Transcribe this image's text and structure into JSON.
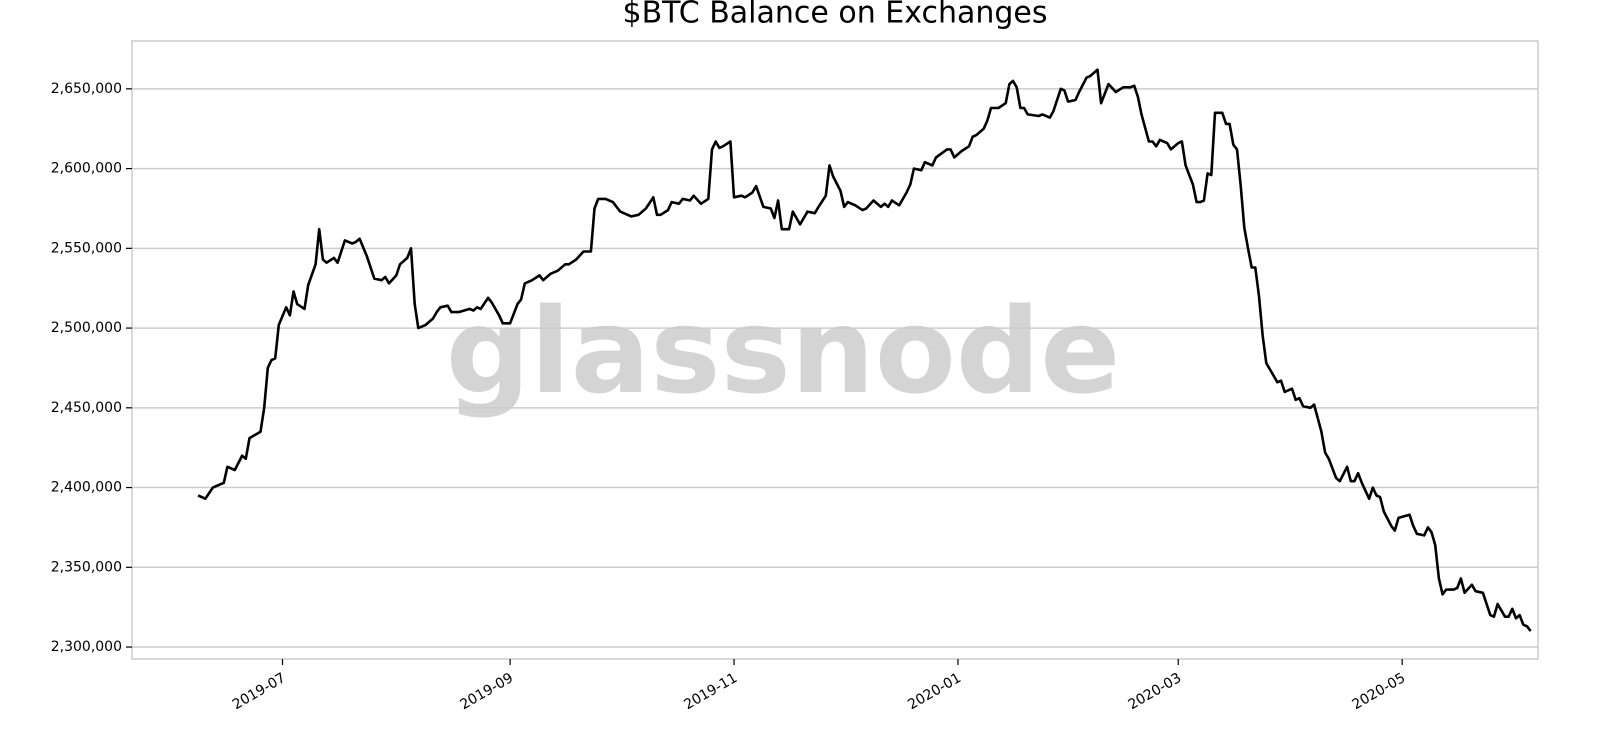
{
  "chart_data": {
    "type": "line",
    "title": "$BTC Balance on Exchanges",
    "watermark": "glassnode",
    "color": "#000000",
    "grid": true,
    "xlim": [
      "2019-05-21",
      "2020-06-07"
    ],
    "xticks": [
      "2019-07",
      "2019-09",
      "2019-11",
      "2020-01",
      "2020-03",
      "2020-05"
    ],
    "ylim": [
      2292500,
      2680000
    ],
    "yticks": [
      {
        "value": 2300000,
        "label": "2,300,000"
      },
      {
        "value": 2350000,
        "label": "2,350,000"
      },
      {
        "value": 2400000,
        "label": "2,400,000"
      },
      {
        "value": 2450000,
        "label": "2,450,000"
      },
      {
        "value": 2500000,
        "label": "2,500,000"
      },
      {
        "value": 2550000,
        "label": "2,550,000"
      },
      {
        "value": 2600000,
        "label": "2,600,000"
      },
      {
        "value": 2650000,
        "label": "2,650,000"
      }
    ],
    "x": [
      "2019-06-08",
      "2019-06-10",
      "2019-06-12",
      "2019-06-15",
      "2019-06-16",
      "2019-06-18",
      "2019-06-20",
      "2019-06-21",
      "2019-06-22",
      "2019-06-25",
      "2019-06-26",
      "2019-06-27",
      "2019-06-28",
      "2019-06-29",
      "2019-06-30",
      "2019-07-02",
      "2019-07-03",
      "2019-07-04",
      "2019-07-05",
      "2019-07-07",
      "2019-07-08",
      "2019-07-10",
      "2019-07-11",
      "2019-07-12",
      "2019-07-13",
      "2019-07-15",
      "2019-07-16",
      "2019-07-18",
      "2019-07-20",
      "2019-07-21",
      "2019-07-22",
      "2019-07-24",
      "2019-07-26",
      "2019-07-28",
      "2019-07-29",
      "2019-07-30",
      "2019-08-01",
      "2019-08-02",
      "2019-08-04",
      "2019-08-05",
      "2019-08-06",
      "2019-08-07",
      "2019-08-09",
      "2019-08-11",
      "2019-08-12",
      "2019-08-13",
      "2019-08-15",
      "2019-08-16",
      "2019-08-18",
      "2019-08-21",
      "2019-08-22",
      "2019-08-23",
      "2019-08-24",
      "2019-08-26",
      "2019-08-27",
      "2019-08-29",
      "2019-08-30",
      "2019-09-01",
      "2019-09-03",
      "2019-09-04",
      "2019-09-05",
      "2019-09-07",
      "2019-09-09",
      "2019-09-10",
      "2019-09-12",
      "2019-09-14",
      "2019-09-16",
      "2019-09-17",
      "2019-09-19",
      "2019-09-21",
      "2019-09-23",
      "2019-09-24",
      "2019-09-25",
      "2019-09-27",
      "2019-09-29",
      "2019-10-01",
      "2019-10-04",
      "2019-10-06",
      "2019-10-08",
      "2019-10-10",
      "2019-10-11",
      "2019-10-12",
      "2019-10-14",
      "2019-10-15",
      "2019-10-17",
      "2019-10-18",
      "2019-10-20",
      "2019-10-21",
      "2019-10-23",
      "2019-10-25",
      "2019-10-26",
      "2019-10-27",
      "2019-10-28",
      "2019-10-29",
      "2019-10-31",
      "2019-11-01",
      "2019-11-03",
      "2019-11-04",
      "2019-11-06",
      "2019-11-07",
      "2019-11-09",
      "2019-11-11",
      "2019-11-12",
      "2019-11-13",
      "2019-11-14",
      "2019-11-16",
      "2019-11-17",
      "2019-11-19",
      "2019-11-21",
      "2019-11-23",
      "2019-11-24",
      "2019-11-26",
      "2019-11-27",
      "2019-11-28",
      "2019-11-30",
      "2019-12-01",
      "2019-12-02",
      "2019-12-04",
      "2019-12-06",
      "2019-12-07",
      "2019-12-09",
      "2019-12-11",
      "2019-12-12",
      "2019-12-13",
      "2019-12-14",
      "2019-12-16",
      "2019-12-18",
      "2019-12-19",
      "2019-12-20",
      "2019-12-22",
      "2019-12-23",
      "2019-12-25",
      "2019-12-26",
      "2019-12-29",
      "2019-12-30",
      "2019-12-31",
      "2020-01-02",
      "2020-01-04",
      "2020-01-05",
      "2020-01-06",
      "2020-01-08",
      "2020-01-09",
      "2020-01-10",
      "2020-01-12",
      "2020-01-14",
      "2020-01-15",
      "2020-01-16",
      "2020-01-17",
      "2020-01-18",
      "2020-01-19",
      "2020-01-20",
      "2020-01-23",
      "2020-01-24",
      "2020-01-26",
      "2020-01-27",
      "2020-01-29",
      "2020-01-30",
      "2020-01-31",
      "2020-02-02",
      "2020-02-03",
      "2020-02-05",
      "2020-02-06",
      "2020-02-08",
      "2020-02-09",
      "2020-02-11",
      "2020-02-13",
      "2020-02-15",
      "2020-02-17",
      "2020-02-18",
      "2020-02-19",
      "2020-02-20",
      "2020-02-22",
      "2020-02-23",
      "2020-02-24",
      "2020-02-25",
      "2020-02-27",
      "2020-02-28",
      "2020-03-01",
      "2020-03-02",
      "2020-03-03",
      "2020-03-05",
      "2020-03-06",
      "2020-03-07",
      "2020-03-08",
      "2020-03-09",
      "2020-03-10",
      "2020-03-11",
      "2020-03-13",
      "2020-03-14",
      "2020-03-15",
      "2020-03-16",
      "2020-03-17",
      "2020-03-18",
      "2020-03-19",
      "2020-03-20",
      "2020-03-21",
      "2020-03-22",
      "2020-03-23",
      "2020-03-24",
      "2020-03-25",
      "2020-03-26",
      "2020-03-28",
      "2020-03-29",
      "2020-03-30",
      "2020-04-01",
      "2020-04-02",
      "2020-04-03",
      "2020-04-04",
      "2020-04-06",
      "2020-04-07",
      "2020-04-09",
      "2020-04-10",
      "2020-04-11",
      "2020-04-13",
      "2020-04-14",
      "2020-04-16",
      "2020-04-17",
      "2020-04-18",
      "2020-04-19",
      "2020-04-20",
      "2020-04-22",
      "2020-04-23",
      "2020-04-24",
      "2020-04-25",
      "2020-04-26",
      "2020-04-28",
      "2020-04-29",
      "2020-04-30",
      "2020-05-03",
      "2020-05-04",
      "2020-05-05",
      "2020-05-07",
      "2020-05-08",
      "2020-05-09",
      "2020-05-10",
      "2020-05-11",
      "2020-05-12",
      "2020-05-13",
      "2020-05-15",
      "2020-05-16",
      "2020-05-17",
      "2020-05-18",
      "2020-05-20",
      "2020-05-21",
      "2020-05-23",
      "2020-05-25",
      "2020-05-26",
      "2020-05-27",
      "2020-05-29",
      "2020-05-30",
      "2020-05-31",
      "2020-06-01",
      "2020-06-02",
      "2020-06-03",
      "2020-06-04",
      "2020-06-05"
    ],
    "values": [
      2395000,
      2393000,
      2400000,
      2403000,
      2413000,
      2411000,
      2420000,
      2418000,
      2431000,
      2435000,
      2450000,
      2475000,
      2480000,
      2481000,
      2502000,
      2513000,
      2508000,
      2523000,
      2515000,
      2512000,
      2527000,
      2540000,
      2562000,
      2543000,
      2541000,
      2544000,
      2541000,
      2555000,
      2553000,
      2554000,
      2556000,
      2545000,
      2531000,
      2530000,
      2532000,
      2528000,
      2533000,
      2540000,
      2544000,
      2550000,
      2515000,
      2500000,
      2502000,
      2506000,
      2510000,
      2513000,
      2514000,
      2510000,
      2510000,
      2512000,
      2511000,
      2513000,
      2512000,
      2519000,
      2516000,
      2508000,
      2503000,
      2503000,
      2515000,
      2518000,
      2528000,
      2530000,
      2533000,
      2530000,
      2534000,
      2536000,
      2540000,
      2540000,
      2543000,
      2548000,
      2548000,
      2575000,
      2581000,
      2581000,
      2579000,
      2573000,
      2570000,
      2571000,
      2575000,
      2582000,
      2571000,
      2571000,
      2574000,
      2579000,
      2578000,
      2581000,
      2580000,
      2583000,
      2578000,
      2581000,
      2612000,
      2617000,
      2613000,
      2614000,
      2617000,
      2582000,
      2583000,
      2582000,
      2585000,
      2589000,
      2576000,
      2575000,
      2569000,
      2580000,
      2562000,
      2562000,
      2573000,
      2565000,
      2573000,
      2572000,
      2576000,
      2583000,
      2602000,
      2595000,
      2586000,
      2576000,
      2579000,
      2577000,
      2574000,
      2575000,
      2580000,
      2576000,
      2578000,
      2576000,
      2580000,
      2577000,
      2585000,
      2590000,
      2600000,
      2599000,
      2604000,
      2602000,
      2607000,
      2612000,
      2612000,
      2607000,
      2611000,
      2614000,
      2620000,
      2621000,
      2625000,
      2630000,
      2638000,
      2638000,
      2641000,
      2653000,
      2655000,
      2651000,
      2638000,
      2638000,
      2634000,
      2633000,
      2634000,
      2632000,
      2636000,
      2650000,
      2649000,
      2642000,
      2643000,
      2648000,
      2657000,
      2658000,
      2662000,
      2641000,
      2653000,
      2648000,
      2651000,
      2651000,
      2652000,
      2645000,
      2634000,
      2617000,
      2617000,
      2614000,
      2618000,
      2616000,
      2612000,
      2616000,
      2617000,
      2602000,
      2590000,
      2579000,
      2579000,
      2580000,
      2597000,
      2596000,
      2635000,
      2635000,
      2628000,
      2628000,
      2615000,
      2612000,
      2590000,
      2563000,
      2550000,
      2538000,
      2538000,
      2520000,
      2495000,
      2478000,
      2474000,
      2466000,
      2467000,
      2460000,
      2462000,
      2455000,
      2456000,
      2451000,
      2450000,
      2452000,
      2435000,
      2422000,
      2418000,
      2406000,
      2404000,
      2413000,
      2404000,
      2404000,
      2409000,
      2403000,
      2393000,
      2400000,
      2395000,
      2394000,
      2385000,
      2376000,
      2373000,
      2381000,
      2383000,
      2376000,
      2371000,
      2370000,
      2375000,
      2372000,
      2364000,
      2343000,
      2333000,
      2336000,
      2336000,
      2337000,
      2343000,
      2334000,
      2339000,
      2335000,
      2334000,
      2320000,
      2319000,
      2327000,
      2319000,
      2319000,
      2324000,
      2318000,
      2320000,
      2314000,
      2313000,
      2310000
    ]
  }
}
